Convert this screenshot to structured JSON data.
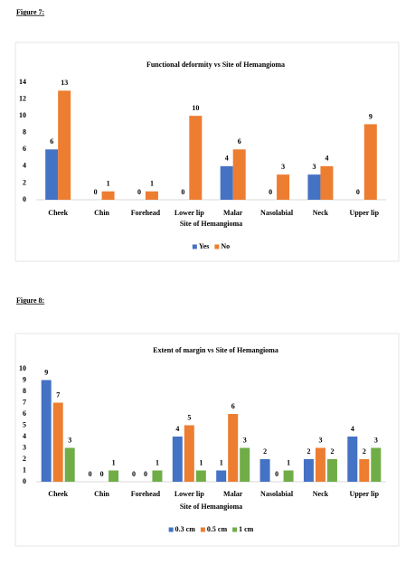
{
  "chart_data": [
    {
      "type": "bar",
      "caption": "Figure 7:",
      "title": "Functional deformity vs Site of Hemangioma",
      "x_label": "Site of Hemangioma",
      "categories": [
        "Cheek",
        "Chin",
        "Forehead",
        "Lower lip",
        "Malar",
        "Nasolabial",
        "Neck",
        "Upper lip"
      ],
      "series": [
        {
          "name": "Yes",
          "color": "#4472c4",
          "values": [
            6,
            0,
            0,
            0,
            4,
            0,
            3,
            0
          ]
        },
        {
          "name": "No",
          "color": "#ed7d31",
          "values": [
            13,
            1,
            1,
            10,
            6,
            3,
            4,
            9
          ]
        }
      ],
      "ylim": [
        0,
        14
      ],
      "yticks": [
        0,
        2,
        4,
        6,
        8,
        10,
        12,
        14
      ],
      "grid": false,
      "legend": "bottom"
    },
    {
      "type": "bar",
      "caption": "Figure 8:",
      "title": "Extent of margin vs Site of Hemangioma",
      "x_label": "Site of Hemangioma",
      "categories": [
        "Cheek",
        "Chin",
        "Forehead",
        "Lower lip",
        "Malar",
        "Nasolabial",
        "Neck",
        "Upper lip"
      ],
      "series": [
        {
          "name": "0.3 cm",
          "color": "#4472c4",
          "values": [
            9,
            0,
            0,
            4,
            1,
            2,
            2,
            4
          ]
        },
        {
          "name": "0.5 cm",
          "color": "#ed7d31",
          "values": [
            7,
            0,
            0,
            5,
            6,
            0,
            3,
            2
          ]
        },
        {
          "name": "1 cm",
          "color": "#70ad47",
          "values": [
            3,
            1,
            1,
            1,
            3,
            1,
            2,
            3
          ]
        }
      ],
      "ylim": [
        0,
        10
      ],
      "yticks": [
        0,
        1,
        2,
        3,
        4,
        5,
        6,
        7,
        8,
        9,
        10
      ],
      "grid": false,
      "legend": "bottom"
    }
  ]
}
